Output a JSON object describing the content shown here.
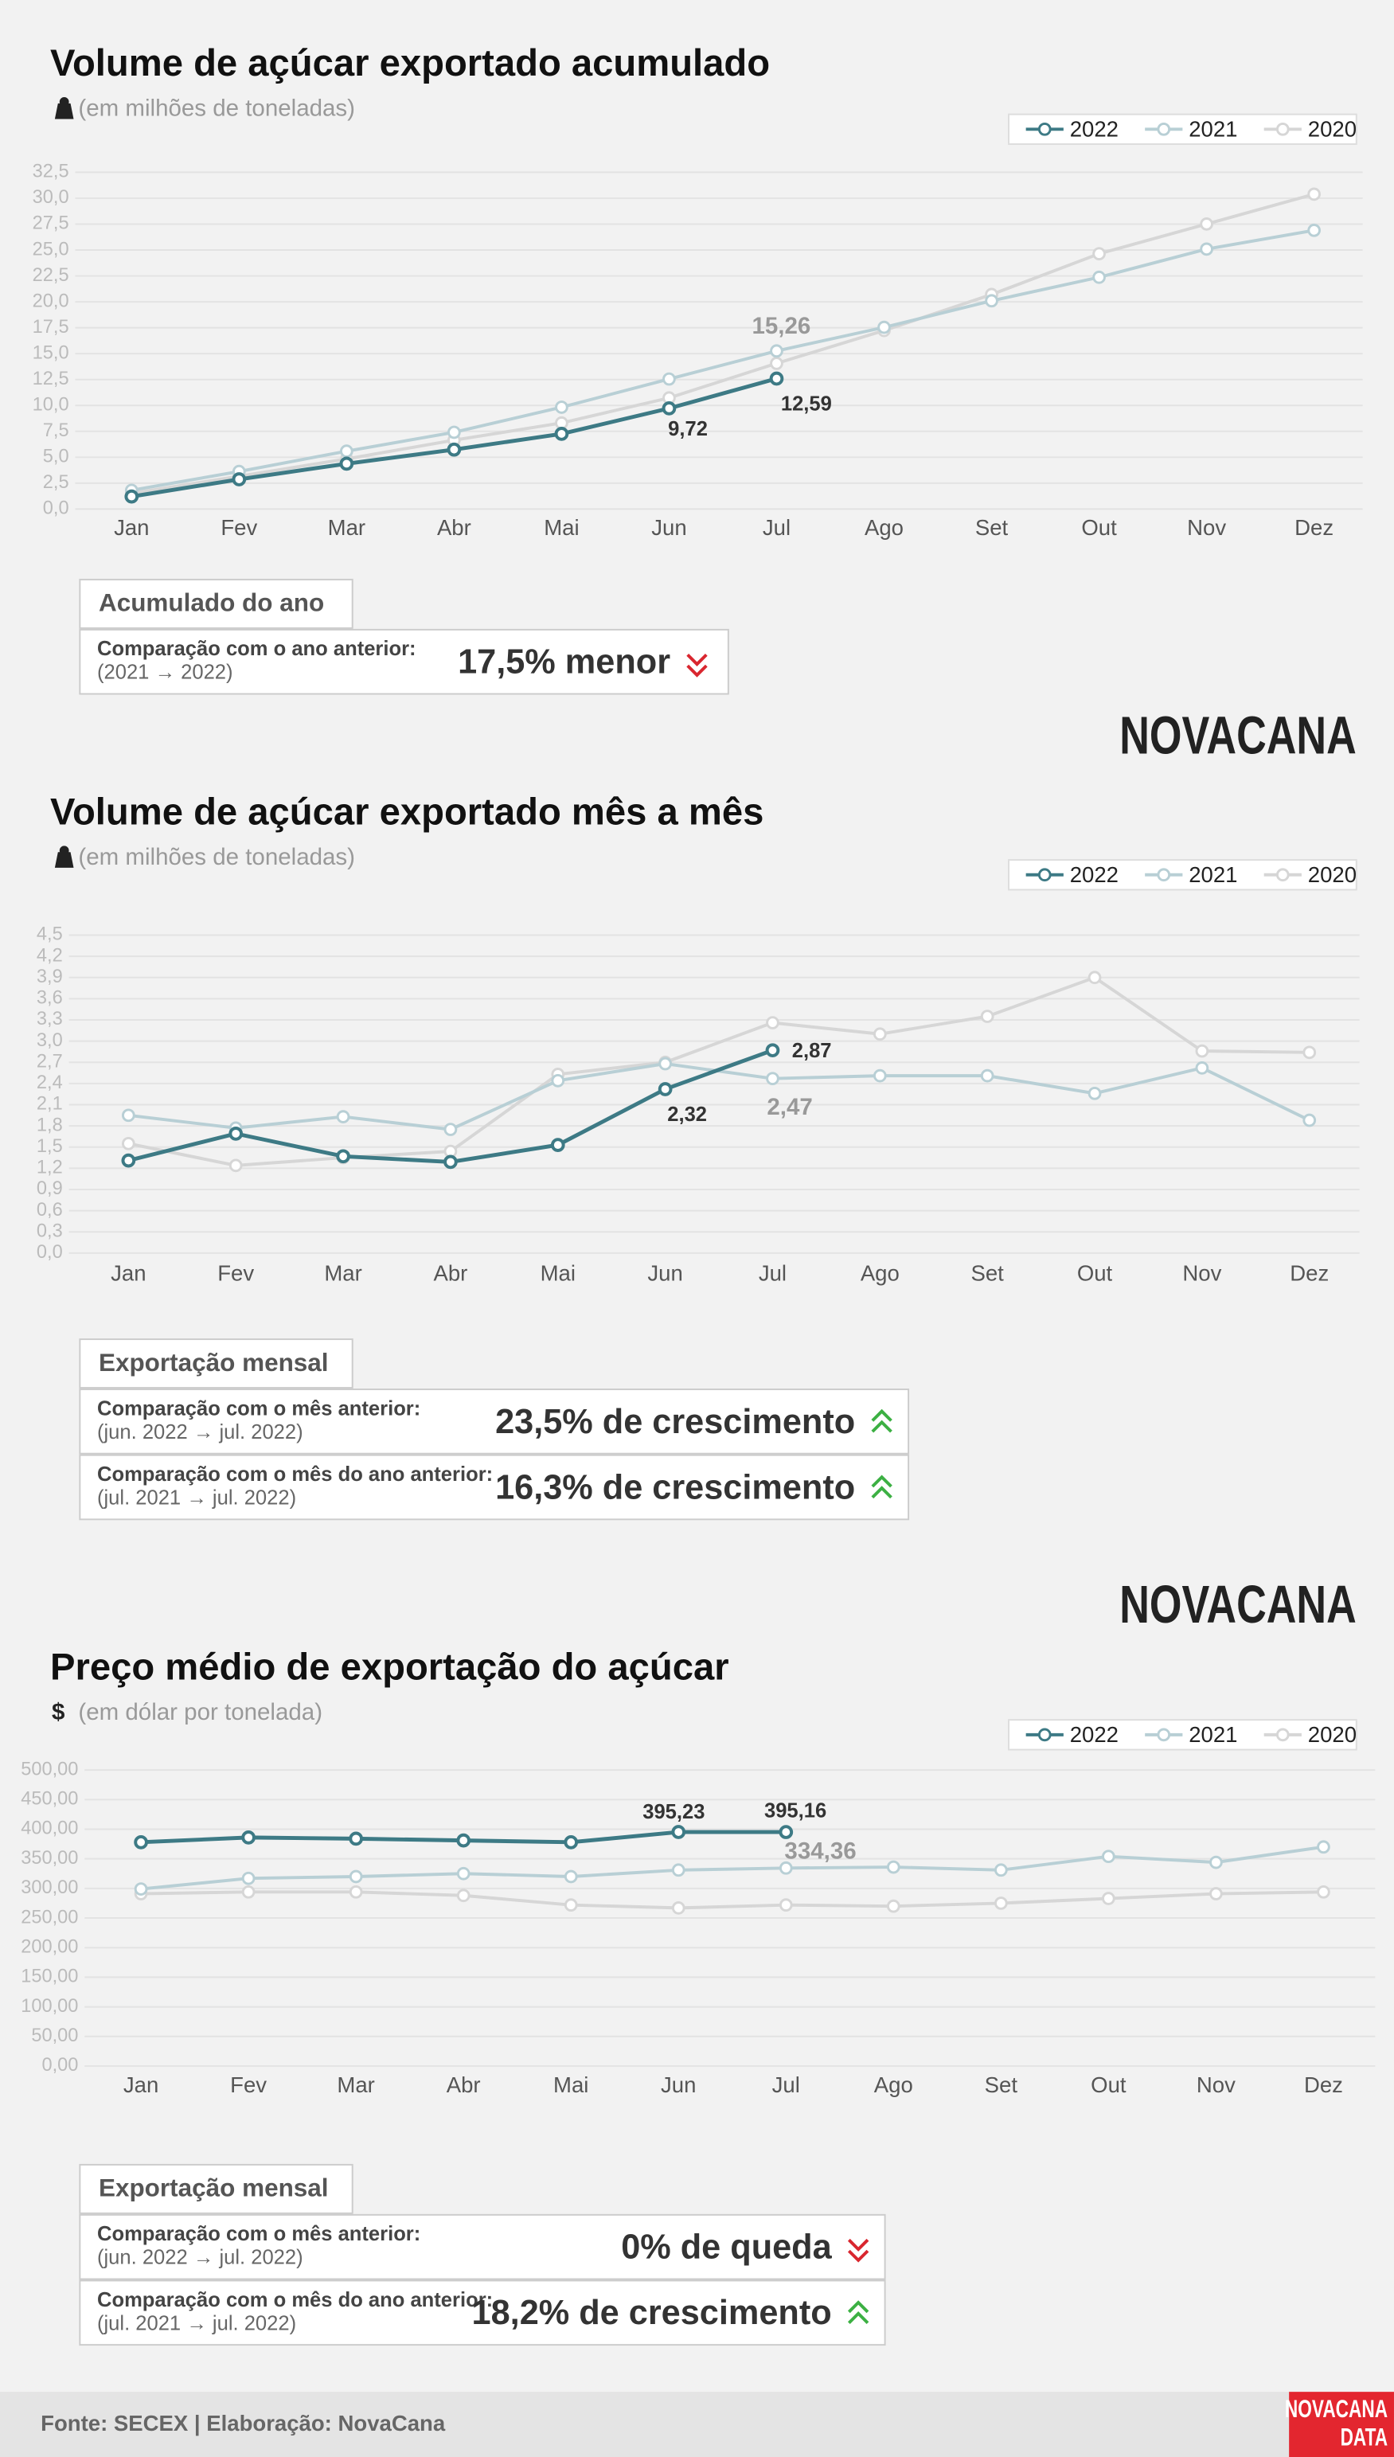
{
  "chart_data": [
    {
      "type": "line",
      "title": "Volume de açúcar exportado acumulado",
      "subtitle": "(em milhões de toneladas)",
      "categories": [
        "Jan",
        "Fev",
        "Mar",
        "Abr",
        "Mai",
        "Jun",
        "Jul",
        "Ago",
        "Set",
        "Out",
        "Nov",
        "Dez"
      ],
      "series": [
        {
          "name": "2022",
          "color": "#3d7a85",
          "values": [
            1.21,
            2.87,
            4.38,
            5.74,
            7.26,
            9.72,
            12.59,
            null,
            null,
            null,
            null,
            null
          ],
          "value_labels": [
            null,
            null,
            null,
            null,
            null,
            "9,72",
            "12,59",
            null,
            null,
            null,
            null,
            null
          ]
        },
        {
          "name": "2021",
          "color": "#b8cfd5",
          "values": [
            1.81,
            3.63,
            5.59,
            7.41,
            9.83,
            12.55,
            15.26,
            17.54,
            20.1,
            22.37,
            25.09,
            26.9
          ],
          "value_labels": [
            null,
            null,
            null,
            null,
            null,
            null,
            "15,26",
            null,
            null,
            null,
            null,
            null
          ]
        },
        {
          "name": "2020",
          "color": "#d6d6d6",
          "values": [
            1.51,
            3.17,
            4.84,
            6.65,
            8.31,
            10.73,
            14.06,
            17.23,
            20.71,
            24.64,
            27.51,
            30.39
          ]
        }
      ],
      "ylim": [
        0,
        32.5
      ],
      "yticks": [
        {
          "value": 0,
          "label": "0,0"
        },
        {
          "value": 2.5,
          "label": "2,5"
        },
        {
          "value": 5,
          "label": "5,0"
        },
        {
          "value": 7.5,
          "label": "7,5"
        },
        {
          "value": 10,
          "label": "10,0"
        },
        {
          "value": 12.5,
          "label": "12,5"
        },
        {
          "value": 15,
          "label": "15,0"
        },
        {
          "value": 17.5,
          "label": "17,5"
        },
        {
          "value": 20,
          "label": "20,0"
        },
        {
          "value": 22.5,
          "label": "22,5"
        },
        {
          "value": 25,
          "label": "25,0"
        },
        {
          "value": 27.5,
          "label": "27,5"
        },
        {
          "value": 30,
          "label": "30,0"
        },
        {
          "value": 32.5,
          "label": "32,5"
        }
      ],
      "grid": true,
      "legend": "top-right"
    },
    {
      "type": "line",
      "title": "Volume de açúcar exportado mês a mês",
      "subtitle": "(em milhões de toneladas)",
      "categories": [
        "Jan",
        "Fev",
        "Mar",
        "Abr",
        "Mai",
        "Jun",
        "Jul",
        "Ago",
        "Set",
        "Out",
        "Nov",
        "Dez"
      ],
      "series": [
        {
          "name": "2022",
          "color": "#3d7a85",
          "values": [
            1.31,
            1.69,
            1.37,
            1.29,
            1.53,
            2.32,
            2.87,
            null,
            null,
            null,
            null,
            null
          ],
          "value_labels": [
            null,
            null,
            null,
            null,
            null,
            "2,32",
            "2,87",
            null,
            null,
            null,
            null,
            null
          ]
        },
        {
          "name": "2021",
          "color": "#b8cfd5",
          "values": [
            1.95,
            1.77,
            1.93,
            1.75,
            2.44,
            2.68,
            2.47,
            2.51,
            2.51,
            2.26,
            2.62,
            1.88
          ],
          "value_labels": [
            null,
            null,
            null,
            null,
            null,
            null,
            "2,47",
            null,
            null,
            null,
            null,
            null
          ]
        },
        {
          "name": "2020",
          "color": "#d6d6d6",
          "values": [
            1.55,
            1.24,
            1.35,
            1.44,
            2.53,
            2.7,
            3.26,
            3.1,
            3.35,
            3.9,
            2.86,
            2.84
          ]
        }
      ],
      "ylim": [
        0,
        4.5
      ],
      "yticks": [
        {
          "value": 0,
          "label": "0,0"
        },
        {
          "value": 0.3,
          "label": "0,3"
        },
        {
          "value": 0.6,
          "label": "0,6"
        },
        {
          "value": 0.9,
          "label": "0,9"
        },
        {
          "value": 1.2,
          "label": "1,2"
        },
        {
          "value": 1.5,
          "label": "1,5"
        },
        {
          "value": 1.8,
          "label": "1,8"
        },
        {
          "value": 2.1,
          "label": "2,1"
        },
        {
          "value": 2.4,
          "label": "2,4"
        },
        {
          "value": 2.7,
          "label": "2,7"
        },
        {
          "value": 3,
          "label": "3,0"
        },
        {
          "value": 3.3,
          "label": "3,3"
        },
        {
          "value": 3.6,
          "label": "3,6"
        },
        {
          "value": 3.9,
          "label": "3,9"
        },
        {
          "value": 4.2,
          "label": "4,2"
        },
        {
          "value": 4.5,
          "label": "4,5"
        }
      ],
      "grid": true,
      "legend": "top-right"
    },
    {
      "type": "line",
      "title": "Preço médio de exportação do açúcar",
      "subtitle": "(em dólar por tonelada)",
      "subtitle_symbol": "$",
      "categories": [
        "Jan",
        "Fev",
        "Mar",
        "Abr",
        "Mai",
        "Jun",
        "Jul",
        "Ago",
        "Set",
        "Out",
        "Nov",
        "Dez"
      ],
      "series": [
        {
          "name": "2022",
          "color": "#3d7a85",
          "values": [
            378,
            386,
            384,
            381,
            378,
            395.23,
            395.16,
            null,
            null,
            null,
            null,
            null
          ],
          "value_labels": [
            null,
            null,
            null,
            null,
            null,
            "395,23",
            "395,16",
            null,
            null,
            null,
            null,
            null
          ]
        },
        {
          "name": "2021",
          "color": "#b8cfd5",
          "values": [
            299,
            317,
            320,
            325,
            320,
            331,
            334.36,
            336,
            331,
            354,
            344,
            370
          ],
          "value_labels": [
            null,
            null,
            null,
            null,
            null,
            null,
            "334,36",
            null,
            null,
            null,
            null,
            null
          ]
        },
        {
          "name": "2020",
          "color": "#d6d6d6",
          "values": [
            291,
            294,
            294,
            288,
            272,
            267,
            272,
            270,
            275,
            283,
            291,
            294
          ]
        }
      ],
      "ylim": [
        0,
        500
      ],
      "yticks": [
        {
          "value": 0,
          "label": "0,00"
        },
        {
          "value": 50,
          "label": "50,00"
        },
        {
          "value": 100,
          "label": "100,00"
        },
        {
          "value": 150,
          "label": "150,00"
        },
        {
          "value": 200,
          "label": "200,00"
        },
        {
          "value": 250,
          "label": "250,00"
        },
        {
          "value": 300,
          "label": "300,00"
        },
        {
          "value": 350,
          "label": "350,00"
        },
        {
          "value": 400,
          "label": "400,00"
        },
        {
          "value": 450,
          "label": "450,00"
        },
        {
          "value": 500,
          "label": "500,00"
        }
      ],
      "grid": true,
      "legend": "top-right"
    }
  ],
  "boxes": [
    {
      "title": "Acumulado do ano",
      "rows": [
        {
          "label": "Comparação com o ano anterior:",
          "period": "(2021 → 2022)",
          "result": "17,5% menor",
          "direction": "down"
        }
      ]
    },
    {
      "title": "Exportação mensal",
      "rows": [
        {
          "label": "Comparação com o mês anterior:",
          "period": "(jun. 2022  → jul. 2022)",
          "result": "23,5% de  crescimento",
          "direction": "up"
        },
        {
          "label": "Comparação com o mês do ano anterior:",
          "period": "(jul. 2021  →  jul. 2022)",
          "result": "16,3% de  crescimento",
          "direction": "up"
        }
      ]
    },
    {
      "title": "Exportação mensal",
      "rows": [
        {
          "label": "Comparação com o mês anterior:",
          "period": "(jun. 2022  → jul. 2022)",
          "result": "0% de queda",
          "direction": "down"
        },
        {
          "label": "Comparação com o mês do ano anterior:",
          "period": "(jul. 2021  →  jul. 2022)",
          "result": "18,2% de crescimento",
          "direction": "up"
        }
      ]
    }
  ],
  "brand": [
    "NOVACANA",
    "NOVACANA"
  ],
  "footer": {
    "source": "Fonte: SECEX | Elaboração: NovaCana",
    "logo": [
      "NOVACANA",
      "DATA"
    ]
  }
}
